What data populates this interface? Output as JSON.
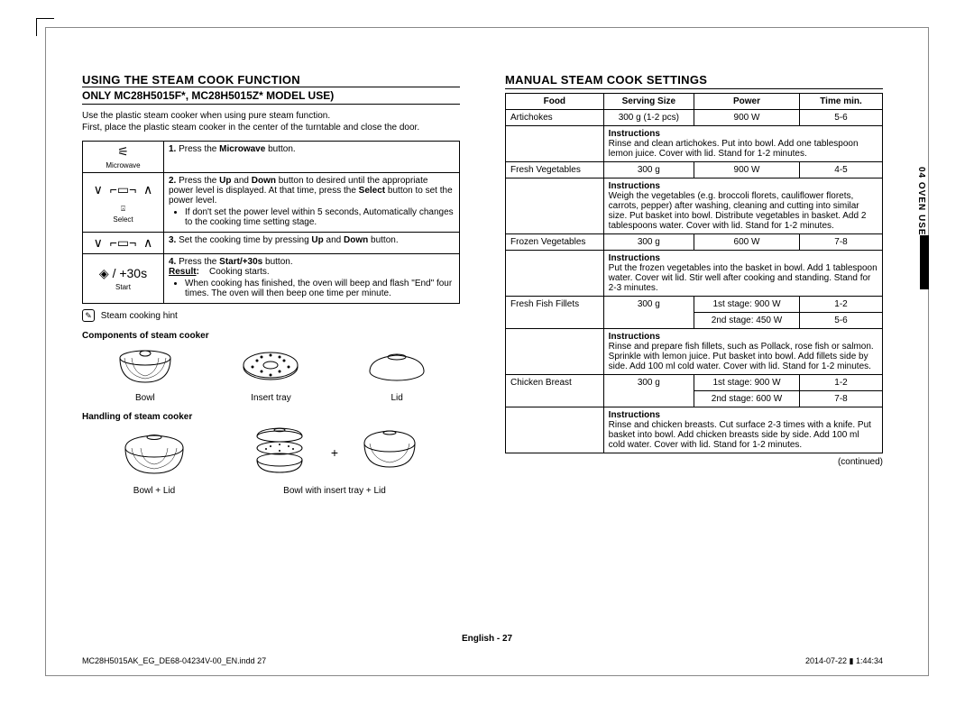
{
  "left": {
    "title": "USING THE STEAM COOK FUNCTION",
    "subtitle": "ONLY MC28H5015F*, MC28H5015Z* MODEL USE)",
    "intro1": "Use the plastic steam cooker when using pure steam function.",
    "intro2": "First, place the plastic steam cooker in the center of the turntable and close the door.",
    "steps": [
      {
        "icon": "microwave",
        "iconlabel": "Microwave",
        "num": "1.",
        "body": "Press the <b>Microwave</b> button."
      },
      {
        "icon": "updown",
        "iconlabel": "Select",
        "num": "2.",
        "body": "Press the <b>Up</b> and <b>Down</b> button to desired until the appropriate power level is displayed. At that time, press the <b>Select</b> button to set the power level.",
        "bullets": [
          "If don't set the power level within 5 seconds, Automatically changes to the  cooking time setting stage."
        ]
      },
      {
        "icon": "updown2",
        "iconlabel": "",
        "num": "3.",
        "body": "Set the cooking time by pressing <b>Up</b> and <b>Down</b> button."
      },
      {
        "icon": "start",
        "iconlabel": "Start",
        "num": "4.",
        "body": "Press the <b>Start/+30s</b> button.<br><b><u>Result</u>:</b>&nbsp;&nbsp;&nbsp;&nbsp;Cooking starts.",
        "bullets": [
          "When cooking has finished, the oven will beep and flash \"End\" four times. The oven will then beep one time per minute."
        ]
      }
    ],
    "hint": "Steam cooking hint",
    "componentsLabel": "Components of steam cooker",
    "components": [
      "Bowl",
      "Insert tray",
      "Lid"
    ],
    "handlingLabel": "Handling of steam cooker",
    "handling": [
      "Bowl + Lid",
      "Bowl with insert tray + Lid"
    ]
  },
  "right": {
    "title": "MANUAL STEAM COOK SETTINGS",
    "headers": [
      "Food",
      "Serving Size",
      "Power",
      "Time min."
    ],
    "rows": [
      {
        "food": "Artichokes",
        "size": "300 g (1-2 pcs)",
        "power": "900 W",
        "time": "5-6",
        "instr": "Rinse and clean artichokes. Put into bowl. Add one tablespoon lemon juice. Cover with lid. Stand for 1-2 minutes."
      },
      {
        "food": "Fresh Vegetables",
        "size": "300 g",
        "power": "900 W",
        "time": "4-5",
        "instr": "Weigh the vegetables (e.g. broccoli florets, cauliflower florets, carrots, pepper) after washing, cleaning and cutting into similar size. Put basket into bowl. Distribute vegetables in basket. Add 2 tablespoons water. Cover with lid. Stand for 1-2 minutes."
      },
      {
        "food": "Frozen Vegetables",
        "size": "300 g",
        "power": "600 W",
        "time": "7-8",
        "instr": "Put the frozen vegetables into the basket in bowl. Add 1 tablespoon water. Cover wit lid. Stir well after cooking and standing. Stand for 2-3 minutes."
      },
      {
        "food": "Fresh Fish Fillets",
        "size": "300 g",
        "power": "1st stage: 900 W",
        "time": "1-2",
        "power2": "2nd stage: 450 W",
        "time2": "5-6",
        "instr": "Rinse and prepare fish fillets, such as Pollack, rose fish or salmon. Sprinkle with lemon juice. Put basket into bowl. Add fillets side by side. Add 100 ml cold water. Cover with lid. Stand for 1-2 minutes."
      },
      {
        "food": "Chicken Breast",
        "size": "300 g",
        "power": "1st stage: 900 W",
        "time": "1-2",
        "power2": "2nd stage: 600 W",
        "time2": "7-8",
        "instr": "Rinse and chicken breasts. Cut surface 2-3 times with a knife. Put basket into bowl. Add chicken breasts side by side. Add 100 ml cold water. Cover with lid. Stand for 1-2 minutes."
      }
    ],
    "continued": "(continued)",
    "sidetab": "04  OVEN USE"
  },
  "footer": {
    "pagelabel": "English - 27",
    "file": "MC28H5015AK_EG_DE68-04234V-00_EN.indd   27",
    "timestamp": "2014-07-22   ▮ 1:44:34"
  },
  "style": {
    "pageWidth": 1080,
    "pageHeight": 792,
    "bgColor": "#ffffff",
    "textColor": "#000000",
    "borderColor": "#000000",
    "bodyFontSize": 10,
    "titleFontSize": 13,
    "subtitleFontSize": 12,
    "footerFontSize": 9
  }
}
